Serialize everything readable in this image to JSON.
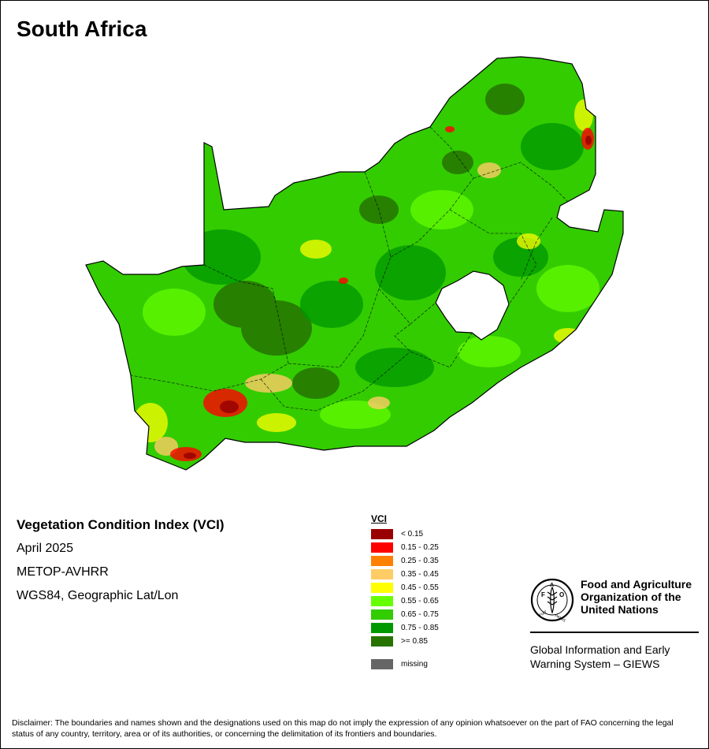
{
  "title": "South Africa",
  "info": {
    "index_name": "Vegetation Condition Index (VCI)",
    "period": "April 2025",
    "sensor": "METOP-AVHRR",
    "projection": "WGS84, Geographic Lat/Lon"
  },
  "legend": {
    "title": "VCI",
    "items": [
      {
        "label": "< 0.15",
        "color": "#990000"
      },
      {
        "label": "0.15 - 0.25",
        "color": "#ff0000"
      },
      {
        "label": "0.25 - 0.35",
        "color": "#ff8000"
      },
      {
        "label": "0.35 - 0.45",
        "color": "#ffcc66"
      },
      {
        "label": "0.45 - 0.55",
        "color": "#ffff00"
      },
      {
        "label": "0.55 - 0.65",
        "color": "#66ff00"
      },
      {
        "label": "0.65 - 0.75",
        "color": "#33cc00"
      },
      {
        "label": "0.75 - 0.85",
        "color": "#009900"
      },
      {
        "label": ">= 0.85",
        "color": "#267300"
      }
    ],
    "missing": {
      "label": "missing",
      "color": "#666666"
    }
  },
  "organization": {
    "name_line1": "Food and Agriculture",
    "name_line2": "Organization of the",
    "name_line3": "United Nations",
    "logo_text": "FAO FIAT PANIS",
    "giews_line1": "Global Information and Early",
    "giews_line2": "Warning System – GIEWS"
  },
  "disclaimer": "Disclaimer: The boundaries and names shown and the designations used on this map do not imply the expression of any opinion whatsoever on the part of FAO concerning the legal status of any country, territory, area or of its authorities, or concerning the delimitation of its frontiers and boundaries.",
  "map": {
    "country": "South Africa",
    "base_color": "#33cc00"
  }
}
